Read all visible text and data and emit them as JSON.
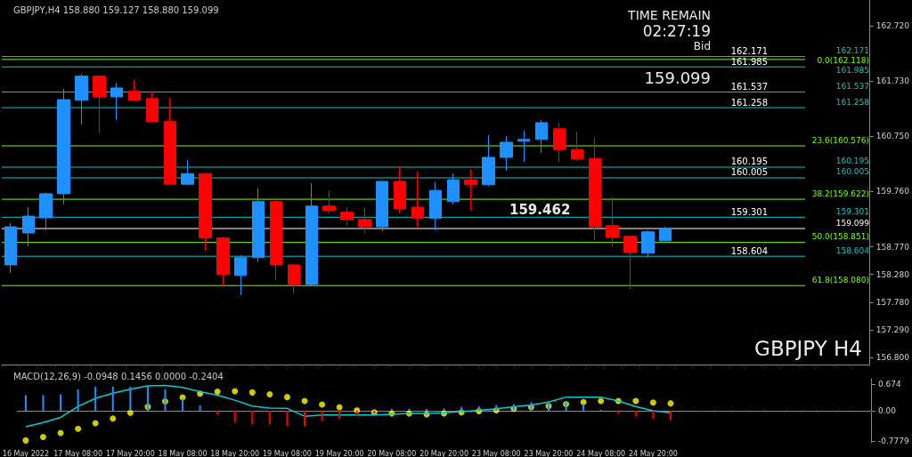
{
  "chart_data": [
    {
      "type": "candlestick",
      "title": "GBPJPY,H4 158.880 159.127 158.880 159.099",
      "tick_labels": "y",
      "categories": [
        null,
        null,
        null,
        null,
        null,
        null,
        null,
        null,
        null,
        null,
        null,
        null,
        null,
        null,
        null,
        null,
        null,
        null,
        null,
        null,
        null,
        null,
        null,
        null,
        null,
        null,
        null,
        null,
        null,
        null,
        null,
        null,
        null,
        null,
        null,
        null,
        null,
        null,
        null,
        null,
        null,
        null,
        null,
        null,
        null,
        null,
        null,
        null,
        null
      ],
      "series": [
        {
          "colors": [
            "#1e90ff",
            "#1e90ff",
            "#1e90ff",
            "#1e90ff",
            "#1e90ff",
            "#ff0000",
            "#1e90ff",
            "#ff0000",
            "#ff0000",
            "#ff0000",
            "#1e90ff",
            "#ff0000",
            "#ff0000",
            "#1e90ff",
            "#1e90ff",
            "#ff0000",
            "#ff0000",
            "#1e90ff",
            "#ff0000",
            "#ff0000",
            "#ff0000",
            "#1e90ff",
            "#ff0000",
            "#ff0000",
            "#1e90ff",
            "#1e90ff",
            "#ff0000",
            "#1e90ff",
            "#1e90ff",
            "#1e90ff",
            "#1e90ff",
            "#ff0000",
            "#ff0000",
            "#ff0000",
            "#ff0000",
            "#ff0000",
            "#1e90ff",
            "#1e90ff",
            null,
            null,
            null,
            null,
            null,
            null,
            null,
            null,
            null,
            null,
            null
          ],
          "ohlc": [
            [
              158.45,
              159.2,
              158.3,
              159.13
            ],
            [
              159.02,
              159.48,
              158.78,
              159.32
            ],
            [
              159.29,
              159.74,
              159.07,
              159.72
            ],
            [
              159.72,
              161.59,
              159.53,
              161.4
            ],
            [
              161.39,
              161.86,
              160.96,
              161.82
            ],
            [
              161.82,
              161.83,
              160.8,
              161.45
            ],
            [
              161.45,
              161.7,
              161.04,
              161.61
            ],
            [
              161.55,
              161.75,
              161.37,
              161.39
            ],
            [
              161.42,
              161.55,
              161.0,
              161.01
            ],
            [
              161.01,
              161.43,
              159.88,
              159.89
            ],
            [
              159.89,
              160.32,
              159.87,
              160.08
            ],
            [
              160.08,
              160.09,
              158.7,
              158.93
            ],
            [
              158.93,
              158.95,
              158.07,
              158.28
            ],
            [
              158.26,
              158.62,
              157.91,
              158.58
            ],
            [
              158.58,
              159.82,
              158.5,
              159.58
            ],
            [
              159.58,
              159.6,
              158.18,
              158.45
            ],
            [
              158.45,
              158.47,
              157.94,
              158.1
            ],
            [
              158.1,
              159.91,
              158.08,
              159.5
            ],
            [
              159.5,
              159.77,
              159.37,
              159.42
            ],
            [
              159.39,
              159.48,
              159.16,
              159.26
            ],
            [
              159.26,
              159.48,
              159.01,
              159.13
            ],
            [
              159.13,
              159.96,
              159.05,
              159.94
            ],
            [
              159.94,
              160.2,
              159.37,
              159.45
            ],
            [
              159.48,
              160.12,
              159.13,
              159.28
            ],
            [
              159.28,
              159.93,
              159.07,
              159.78
            ],
            [
              159.58,
              160.08,
              159.53,
              159.97
            ],
            [
              159.97,
              160.16,
              159.42,
              159.88
            ],
            [
              159.88,
              160.77,
              159.86,
              160.37
            ],
            [
              160.37,
              160.75,
              160.13,
              160.64
            ],
            [
              160.66,
              160.85,
              160.29,
              160.69
            ],
            [
              160.69,
              161.04,
              160.45,
              160.99
            ],
            [
              160.88,
              160.99,
              160.29,
              160.51
            ],
            [
              160.51,
              160.83,
              160.31,
              160.34
            ],
            [
              160.35,
              160.72,
              158.89,
              159.13
            ],
            [
              159.15,
              159.66,
              158.77,
              158.94
            ],
            [
              158.96,
              158.97,
              158.02,
              158.67
            ],
            [
              158.66,
              159.07,
              158.58,
              159.04
            ],
            [
              158.88,
              159.127,
              158.88,
              159.099
            ],
            null,
            null,
            null,
            null,
            null,
            null,
            null,
            null,
            null,
            null,
            null
          ]
        }
      ],
      "ylim": [
        156.67,
        163.18
      ],
      "yticks": [
        {
          "value": 162.72,
          "label": "162.720"
        },
        {
          "value": 161.73,
          "label": "161.730"
        },
        {
          "value": 160.75,
          "label": "160.750"
        },
        {
          "value": 159.76,
          "label": "159.760"
        },
        {
          "value": 158.77,
          "label": "158.770"
        },
        {
          "value": 158.28,
          "label": "158.280"
        },
        {
          "value": 157.78,
          "label": "157.780"
        },
        {
          "value": 157.29,
          "label": "157.290"
        },
        {
          "value": 156.8,
          "label": "156.800"
        }
      ],
      "ref_lines": [
        {
          "axis": "y",
          "value": 162.171,
          "label": "162.171",
          "color": "#00c8c8"
        },
        {
          "axis": "y",
          "value": 161.985,
          "label": "161.985",
          "color": "#00c8c8"
        },
        {
          "axis": "y",
          "value": 161.537,
          "label": "161.537",
          "color": "#00c8c8"
        },
        {
          "axis": "y",
          "value": 161.258,
          "label": "161.258",
          "color": "#00c8c8"
        },
        {
          "axis": "y",
          "value": 160.195,
          "label": "160.195",
          "color": "#00c8c8"
        },
        {
          "axis": "y",
          "value": 160.005,
          "label": "160.005",
          "color": "#00c8c8"
        },
        {
          "axis": "y",
          "value": 159.301,
          "label": "159.301",
          "color": "#00c8c8"
        },
        {
          "axis": "y",
          "value": 158.604,
          "label": "158.604",
          "color": "#00c8c8"
        },
        {
          "axis": "y",
          "value": 159.099,
          "label": "159.099",
          "color": "#ffffff"
        },
        {
          "axis": "y",
          "value": 162.118,
          "label": "0.0(162.118)",
          "color": "#7cfc00"
        },
        {
          "axis": "y",
          "value": 160.576,
          "label": "23.6(160.576)",
          "color": "#7cfc00"
        },
        {
          "axis": "y",
          "value": 159.622,
          "label": "38.2(159.622)",
          "color": "#7cfc00"
        },
        {
          "axis": "y",
          "value": 158.851,
          "label": "50.0(158.851)",
          "color": "#7cfc00"
        },
        {
          "axis": "y",
          "value": 158.08,
          "label": "61.8(158.080)",
          "color": "#7cfc00"
        }
      ],
      "annotations": [
        "TIME REMAIN",
        "02:27:19",
        "Bid",
        "159.099",
        "159.462",
        "GBPJPY H4",
        {
          "text": "162.171",
          "y": 162.171
        },
        {
          "text": "161.985",
          "y": 161.985
        },
        {
          "text": "161.537",
          "y": 161.537
        },
        {
          "text": "161.258",
          "y": 161.258
        },
        {
          "text": "160.195",
          "y": 160.195
        },
        {
          "text": "160.005",
          "y": 160.005
        },
        {
          "text": "159.301",
          "y": 159.301
        },
        {
          "text": "158.604",
          "y": 158.604
        }
      ]
    },
    {
      "type": "bar",
      "title": "MACD(12,26,9) -0.0948 0.1456 0.0000 -0.2404",
      "categories": [
        "16 May 2022",
        null,
        null,
        "17 May 08:00",
        null,
        null,
        "17 May 20:00",
        null,
        null,
        "18 May 08:00",
        null,
        null,
        "18 May 20:00",
        null,
        null,
        "19 May 08:00",
        null,
        null,
        "19 May 20:00",
        null,
        null,
        "20 May 08:00",
        null,
        null,
        "20 May 20:00",
        null,
        null,
        "23 May 08:00",
        null,
        null,
        "23 May 20:00",
        null,
        null,
        "24 May 08:00",
        null,
        null,
        "24 May 20:00",
        null,
        null,
        null,
        null,
        null,
        null,
        null,
        null,
        null,
        null,
        null,
        null
      ],
      "series": [
        {
          "colors": [
            "#1e90ff",
            "#1e90ff",
            "#1e90ff",
            "#1e90ff",
            "#1e90ff",
            "#1e90ff",
            "#1e90ff",
            "#1e90ff",
            "#1e90ff",
            "#1e90ff",
            "#1e90ff",
            "#ff0000",
            "#ff0000",
            "#ff0000",
            "#ff0000",
            "#ff0000",
            "#ff0000",
            "#ff0000",
            "#ff0000",
            "#ff0000",
            "#ff0000",
            "#1e90ff",
            "#1e90ff",
            "#1e90ff",
            "#1e90ff",
            "#1e90ff",
            "#1e90ff",
            "#1e90ff",
            "#1e90ff",
            "#1e90ff",
            "#1e90ff",
            "#1e90ff",
            "#1e90ff",
            "#1e90ff",
            "#ff0000",
            "#ff0000",
            "#ff0000",
            "#ff0000",
            null,
            null,
            null,
            null,
            null,
            null,
            null,
            null,
            null,
            null,
            null
          ],
          "values": [
            0.4,
            0.4,
            0.42,
            0.55,
            0.62,
            0.62,
            0.62,
            0.62,
            0.55,
            0.3,
            0.14,
            -0.1,
            -0.3,
            -0.35,
            -0.35,
            -0.39,
            -0.4,
            -0.26,
            -0.2,
            -0.12,
            -0.07,
            0.05,
            0.05,
            0.05,
            0.06,
            0.1,
            0.12,
            0.15,
            0.17,
            0.22,
            0.24,
            0.24,
            0.17,
            0.02,
            -0.07,
            -0.15,
            -0.2,
            -0.24,
            null,
            null,
            null,
            null,
            null,
            null,
            null,
            null,
            null,
            null,
            null
          ]
        },
        {
          "type": "line",
          "color": "#00ced1",
          "values": [
            -0.41,
            -0.3,
            -0.17,
            0.11,
            0.32,
            0.45,
            0.55,
            0.64,
            0.65,
            0.6,
            0.49,
            0.4,
            0.27,
            0.12,
            0.07,
            0.06,
            -0.14,
            -0.11,
            -0.11,
            -0.11,
            -0.11,
            -0.09,
            -0.07,
            -0.07,
            -0.05,
            -0.02,
            0.01,
            0.05,
            0.1,
            0.15,
            0.22,
            0.35,
            0.35,
            0.35,
            0.25,
            0.11,
            0.0,
            -0.05,
            null,
            null,
            null,
            null,
            null,
            null,
            null,
            null,
            null,
            null,
            null
          ]
        },
        {
          "type": "scatter",
          "color": "#ffff00",
          "marker": "circle",
          "values": [
            -0.76,
            -0.67,
            -0.57,
            -0.46,
            -0.32,
            -0.2,
            -0.05,
            0.1,
            0.24,
            0.34,
            0.44,
            0.49,
            0.5,
            0.47,
            0.42,
            0.35,
            0.25,
            0.16,
            0.09,
            0.01,
            -0.04,
            -0.07,
            -0.07,
            -0.09,
            -0.07,
            -0.04,
            -0.01,
            0.01,
            0.05,
            0.09,
            0.12,
            0.17,
            0.22,
            0.25,
            0.25,
            0.25,
            0.21,
            0.19,
            null,
            null,
            null,
            null,
            null,
            null,
            null,
            null,
            null,
            null,
            null
          ]
        }
      ],
      "ylim": [
        -0.82,
        0.82
      ],
      "yticks": [
        0.674,
        {
          "value": 0,
          "label": "0.00"
        },
        -0.7779
      ]
    }
  ]
}
